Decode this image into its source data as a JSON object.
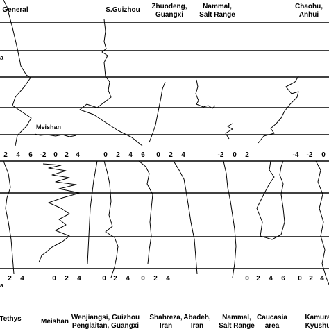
{
  "chart_data": {
    "type": "line",
    "top_panel": {
      "headers": [
        {
          "text": "General"
        },
        {
          "text": "S.Guizhou"
        },
        {
          "text": "Zhuodeng,",
          "text2": "Guangxi"
        },
        {
          "text": "Nammal,",
          "text2": "Salt Range"
        },
        {
          "text": "Chaohu,",
          "text2": "Anhui"
        }
      ],
      "side_labels": [
        {
          "text": "a"
        }
      ],
      "inline_labels": [
        {
          "text": "Meishan"
        }
      ],
      "axis_ticks": [
        "2",
        "4",
        "6",
        "-2",
        "0",
        "2",
        "4",
        "0",
        "2",
        "4",
        "6",
        "0",
        "2",
        "4",
        "-2",
        "0",
        "2",
        "-4",
        "-2",
        "0"
      ]
    },
    "bottom_panel": {
      "headers": [
        {
          "text": "Tethys"
        },
        {
          "text": "Meishan"
        },
        {
          "text": "Wenjiangsi, Guizhou",
          "text2": "Penglaitan, Guangxi"
        },
        {
          "text": "Shahreza,",
          "text2": "Iran"
        },
        {
          "text": "Abadeh,",
          "text2": "Iran"
        },
        {
          "text": "Nammal,",
          "text2": "Salt Range"
        },
        {
          "text": "Caucasia",
          "text2": "area"
        },
        {
          "text": "Kamura",
          "text2": "Kyushu"
        }
      ],
      "side_labels": [
        {
          "text": "a"
        }
      ],
      "axis_ticks": [
        "2",
        "4",
        "0",
        "2",
        "4",
        "0",
        "2",
        "4",
        "0",
        "2",
        "4",
        "0",
        "2",
        "4",
        "6",
        "0",
        "2",
        "4"
      ]
    }
  }
}
